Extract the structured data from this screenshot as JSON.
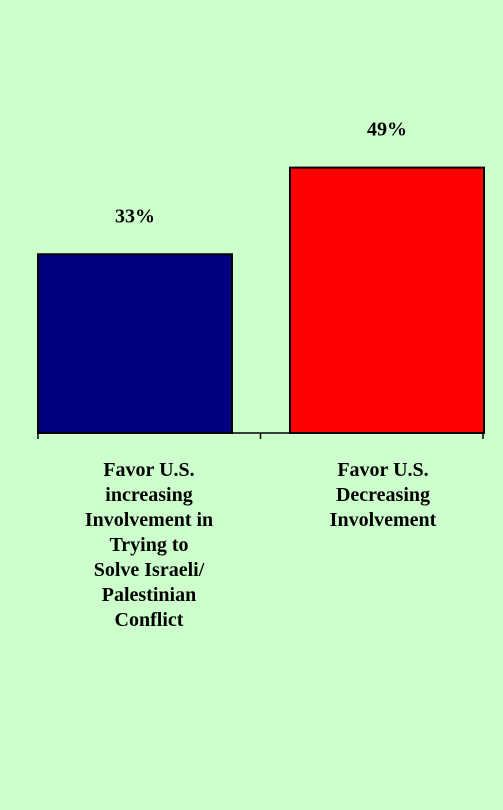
{
  "chart_data": {
    "type": "bar",
    "title": "",
    "xlabel": "",
    "ylabel": "",
    "ylim": [
      0,
      60
    ],
    "grid": false,
    "legend": "none",
    "categories": [
      "Favor U.S.\nincreasing\nInvolvement in\nTrying to\nSolve Israeli/\nPalestinian\nConflict",
      "Favor U.S.\nDecreasing\nInvolvement"
    ],
    "values": [
      33,
      49
    ],
    "value_labels": [
      "33%",
      "49%"
    ],
    "colors": [
      "#000080",
      "#ff0000"
    ],
    "background": "#ccffcc"
  }
}
